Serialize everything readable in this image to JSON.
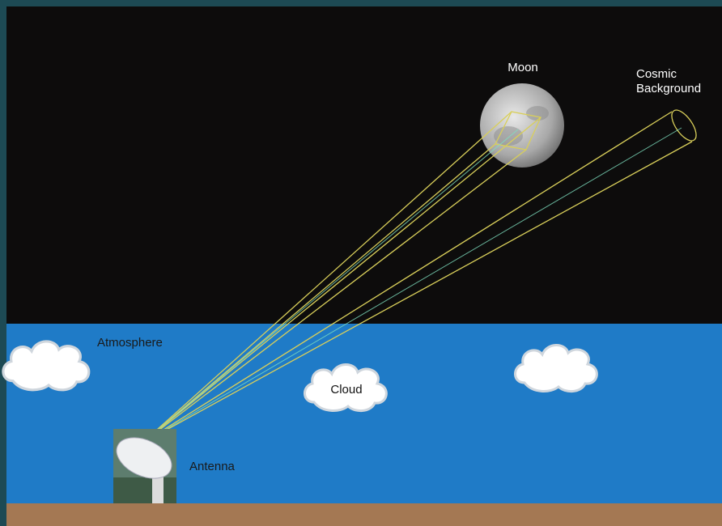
{
  "labels": {
    "moon": "Moon",
    "cosmic_background": [
      "Cosmic",
      "Background"
    ],
    "atmosphere": "Atmosphere",
    "cloud": "Cloud",
    "antenna": "Antenna"
  }
}
